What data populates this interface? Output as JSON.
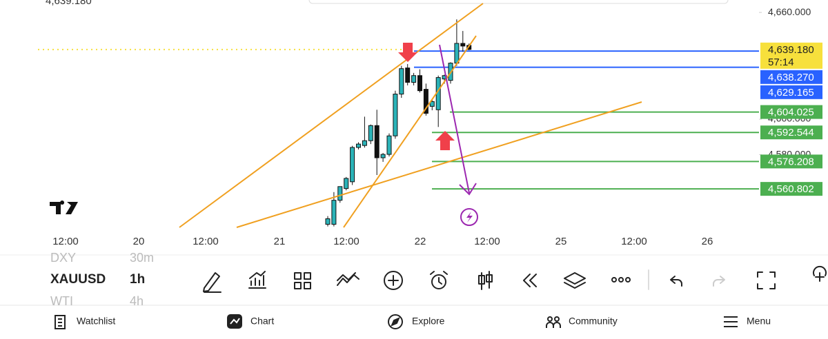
{
  "chart_data": {
    "type": "candlestick",
    "header_price": "4,639.180",
    "ylim": [
      4538,
      4667
    ],
    "yticks": [
      {
        "value": 4660,
        "label": "4,660.000"
      },
      {
        "value": 4600,
        "label": "4,600.000"
      },
      {
        "value": 4580,
        "label": "4,580.000"
      }
    ],
    "x_labels": [
      "12:00",
      "20",
      "12:00",
      "21",
      "12:00",
      "22",
      "12:00",
      "25",
      "12:00",
      "26"
    ],
    "up_color": "#2bb3b8",
    "down_color": "#111111",
    "candles": {
      "open": [
        4540.9,
        4540.9,
        4554.4,
        4561.0,
        4564.8,
        4584.1,
        4585.2,
        4587.9,
        4596.4,
        4578.3,
        4580.2,
        4590.6,
        4614.1,
        4628.8,
        4620.7,
        4624.5,
        4616.8,
        4607.2,
        4605.3,
        4622.6,
        4621.8,
        4631.5,
        4642.6,
        4641.5
      ],
      "high": [
        4545.5,
        4559.0,
        4562.1,
        4567.5,
        4585.0,
        4587.0,
        4601.4,
        4597.0,
        4605.3,
        4581.0,
        4592.0,
        4616.0,
        4630.0,
        4631.0,
        4626.0,
        4628.0,
        4620.0,
        4611.0,
        4624.5,
        4625.0,
        4632.0,
        4656.1,
        4649.6,
        4642.5
      ],
      "low": [
        4539.7,
        4539.7,
        4553.0,
        4560.0,
        4563.0,
        4583.0,
        4584.0,
        4586.0,
        4568.6,
        4576.0,
        4579.0,
        4589.0,
        4612.0,
        4619.0,
        4619.0,
        4615.0,
        4602.0,
        4605.0,
        4595.6,
        4620.0,
        4620.0,
        4630.0,
        4638.0,
        4638.8
      ],
      "close": [
        4544.0,
        4554.4,
        4562.1,
        4566.7,
        4584.1,
        4586.0,
        4587.9,
        4596.4,
        4578.3,
        4580.2,
        4590.6,
        4614.1,
        4628.4,
        4620.7,
        4624.5,
        4616.0,
        4603.3,
        4609.9,
        4623.4,
        4624.5,
        4631.5,
        4642.6,
        4641.1,
        4639.2
      ]
    },
    "last_price": {
      "value": 4639.18,
      "label": "4,639.180",
      "color": "#f7e03c"
    },
    "countdown": "57:14",
    "levels": [
      {
        "value": 4638.27,
        "label": "4,638.270",
        "color": "#2962ff"
      },
      {
        "value": 4629.165,
        "label": "4,629.165",
        "color": "#2962ff"
      },
      {
        "value": 4604.025,
        "label": "4,604.025",
        "color": "#4caf50"
      },
      {
        "value": 4592.544,
        "label": "4,592.544",
        "color": "#4caf50"
      },
      {
        "value": 4576.208,
        "label": "4,576.208",
        "color": "#4caf50"
      },
      {
        "value": 4560.802,
        "label": "4,560.802",
        "color": "#4caf50"
      }
    ]
  },
  "toolbar": {
    "symbols": [
      {
        "name": "DXY",
        "interval": "30m"
      },
      {
        "name": "XAUUSD",
        "interval": "1h"
      },
      {
        "name": "WTI",
        "interval": "4h"
      }
    ]
  },
  "nav": [
    "Watchlist",
    "Chart",
    "Explore",
    "Community",
    "Menu"
  ]
}
